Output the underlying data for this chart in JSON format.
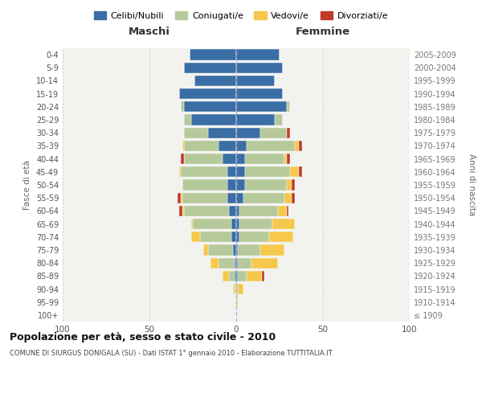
{
  "age_groups": [
    "100+",
    "95-99",
    "90-94",
    "85-89",
    "80-84",
    "75-79",
    "70-74",
    "65-69",
    "60-64",
    "55-59",
    "50-54",
    "45-49",
    "40-44",
    "35-39",
    "30-34",
    "25-29",
    "20-24",
    "15-19",
    "10-14",
    "5-9",
    "0-4"
  ],
  "birth_years": [
    "≤ 1909",
    "1910-1914",
    "1915-1919",
    "1920-1924",
    "1925-1929",
    "1930-1934",
    "1935-1939",
    "1940-1944",
    "1945-1949",
    "1950-1954",
    "1955-1959",
    "1960-1964",
    "1965-1969",
    "1970-1974",
    "1975-1979",
    "1980-1984",
    "1985-1989",
    "1990-1994",
    "1995-1999",
    "2000-2004",
    "2005-2009"
  ],
  "male": {
    "celibi": [
      0,
      0,
      0,
      1,
      1,
      2,
      3,
      3,
      4,
      5,
      5,
      5,
      8,
      10,
      16,
      26,
      30,
      33,
      24,
      30,
      27
    ],
    "coniugati": [
      0,
      0,
      1,
      3,
      9,
      14,
      18,
      22,
      26,
      26,
      26,
      27,
      22,
      20,
      14,
      4,
      2,
      0,
      0,
      0,
      0
    ],
    "vedovi": [
      0,
      0,
      1,
      4,
      5,
      3,
      5,
      1,
      1,
      1,
      0,
      1,
      0,
      1,
      0,
      0,
      0,
      0,
      0,
      0,
      0
    ],
    "divorziati": [
      0,
      0,
      0,
      0,
      0,
      0,
      0,
      0,
      2,
      2,
      0,
      0,
      2,
      0,
      0,
      0,
      0,
      0,
      0,
      0,
      0
    ]
  },
  "female": {
    "nubili": [
      0,
      0,
      0,
      1,
      1,
      1,
      2,
      2,
      2,
      4,
      5,
      5,
      5,
      6,
      14,
      22,
      29,
      27,
      22,
      27,
      25
    ],
    "coniugate": [
      0,
      0,
      1,
      5,
      8,
      13,
      17,
      19,
      22,
      24,
      24,
      26,
      23,
      28,
      15,
      5,
      2,
      0,
      0,
      0,
      0
    ],
    "vedove": [
      0,
      1,
      3,
      9,
      15,
      14,
      14,
      13,
      5,
      4,
      3,
      5,
      1,
      2,
      0,
      0,
      0,
      0,
      0,
      0,
      0
    ],
    "divorziate": [
      0,
      0,
      0,
      1,
      0,
      0,
      0,
      0,
      1,
      2,
      2,
      2,
      2,
      2,
      2,
      0,
      0,
      0,
      0,
      0,
      0
    ]
  },
  "colors": {
    "celibi": "#3a6ea5",
    "coniugati": "#b5c99a",
    "vedovi": "#f5c84c",
    "divorziati": "#c0392b"
  },
  "title": "Popolazione per età, sesso e stato civile - 2010",
  "subtitle": "COMUNE DI SIURGUS DONIGALA (SU) - Dati ISTAT 1° gennaio 2010 - Elaborazione TUTTITALIA.IT",
  "xlabel_maschi": "Maschi",
  "xlabel_femmine": "Femmine",
  "ylabel_left": "Fasce di età",
  "ylabel_right": "Anni di nascita",
  "xlim": 100,
  "legend_labels": [
    "Celibi/Nubili",
    "Coniugati/e",
    "Vedovi/e",
    "Divorziati/e"
  ]
}
